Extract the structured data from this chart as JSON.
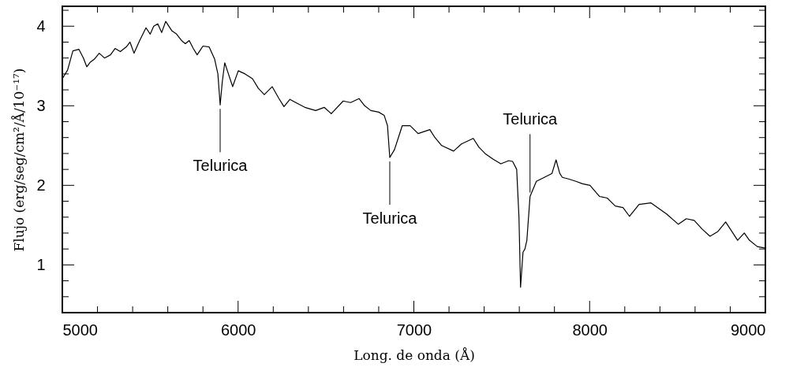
{
  "chart_data": {
    "type": "line",
    "xlabel": "Long. de onda (Å)",
    "ylabel": "Flujo (erg/seg/cm²/Å/10⁻¹⁷)",
    "xlim": [
      5000,
      9000
    ],
    "ylim": [
      0.4,
      4.25
    ],
    "xticks": [
      5000,
      {
        "value": 5200,
        "label": null
      },
      {
        "value": 5400,
        "label": null
      },
      {
        "value": 5600,
        "label": null
      },
      {
        "value": 5800,
        "label": null
      },
      6000,
      {
        "value": 6200,
        "label": null
      },
      {
        "value": 6400,
        "label": null
      },
      {
        "value": 6600,
        "label": null
      },
      {
        "value": 6800,
        "label": null
      },
      7000,
      {
        "value": 7200,
        "label": null
      },
      {
        "value": 7400,
        "label": null
      },
      {
        "value": 7600,
        "label": null
      },
      {
        "value": 7800,
        "label": null
      },
      8000,
      {
        "value": 8200,
        "label": null
      },
      {
        "value": 8400,
        "label": null
      },
      {
        "value": 8600,
        "label": null
      },
      {
        "value": 8800,
        "label": null
      },
      9000
    ],
    "yticks": [
      {
        "value": 0.6,
        "label": null
      },
      {
        "value": 0.8,
        "label": null
      },
      1,
      {
        "value": 1.2,
        "label": null
      },
      {
        "value": 1.4,
        "label": null
      },
      {
        "value": 1.6,
        "label": null
      },
      {
        "value": 1.8,
        "label": null
      },
      2,
      {
        "value": 2.2,
        "label": null
      },
      {
        "value": 2.4,
        "label": null
      },
      {
        "value": 2.6,
        "label": null
      },
      {
        "value": 2.8,
        "label": null
      },
      3,
      {
        "value": 3.2,
        "label": null
      },
      {
        "value": 3.4,
        "label": null
      },
      {
        "value": 3.6,
        "label": null
      },
      {
        "value": 3.8,
        "label": null
      },
      4,
      {
        "value": 4.2,
        "label": null
      }
    ],
    "marker": "none",
    "line_style": "solid",
    "series": [
      {
        "color": "#000000",
        "x": [
          5000,
          5030,
          5060,
          5094,
          5120,
          5139,
          5160,
          5184,
          5210,
          5240,
          5274,
          5300,
          5330,
          5364,
          5385,
          5408,
          5440,
          5476,
          5500,
          5520,
          5543,
          5565,
          5588,
          5624,
          5650,
          5678,
          5700,
          5722,
          5745,
          5767,
          5800,
          5835,
          5866,
          5885,
          5898,
          5910,
          5924,
          5945,
          5969,
          6001,
          6040,
          6082,
          6115,
          6149,
          6194,
          6230,
          6261,
          6295,
          6328,
          6380,
          6441,
          6490,
          6530,
          6598,
          6640,
          6688,
          6720,
          6755,
          6800,
          6831,
          6850,
          6863,
          6890,
          6934,
          6979,
          7024,
          7091,
          7120,
          7158,
          7226,
          7271,
          7338,
          7370,
          7405,
          7450,
          7495,
          7540,
          7562,
          7585,
          7598,
          7607,
          7621,
          7632,
          7643,
          7661,
          7697,
          7742,
          7786,
          7809,
          7830,
          7845,
          7880,
          7922,
          7960,
          8002,
          8056,
          8100,
          8146,
          8190,
          8227,
          8281,
          8348,
          8400,
          8438,
          8505,
          8550,
          8595,
          8640,
          8685,
          8730,
          8774,
          8842,
          8880,
          8909,
          8954,
          9000
        ],
        "values": [
          3.34,
          3.45,
          3.69,
          3.71,
          3.6,
          3.49,
          3.55,
          3.59,
          3.66,
          3.6,
          3.64,
          3.72,
          3.68,
          3.74,
          3.8,
          3.66,
          3.82,
          3.98,
          3.9,
          4.0,
          4.03,
          3.92,
          4.06,
          3.94,
          3.9,
          3.82,
          3.78,
          3.82,
          3.72,
          3.64,
          3.75,
          3.74,
          3.59,
          3.4,
          3.01,
          3.3,
          3.54,
          3.4,
          3.24,
          3.44,
          3.4,
          3.34,
          3.22,
          3.14,
          3.24,
          3.1,
          2.99,
          3.08,
          3.04,
          2.98,
          2.94,
          2.98,
          2.9,
          3.06,
          3.04,
          3.09,
          3.0,
          2.94,
          2.92,
          2.88,
          2.75,
          2.35,
          2.45,
          2.75,
          2.75,
          2.65,
          2.7,
          2.6,
          2.5,
          2.43,
          2.52,
          2.59,
          2.48,
          2.4,
          2.33,
          2.27,
          2.31,
          2.3,
          2.2,
          1.6,
          0.72,
          1.16,
          1.2,
          1.31,
          1.86,
          2.05,
          2.1,
          2.15,
          2.32,
          2.15,
          2.1,
          2.08,
          2.05,
          2.02,
          2.0,
          1.86,
          1.84,
          1.74,
          1.72,
          1.61,
          1.76,
          1.78,
          1.7,
          1.64,
          1.51,
          1.58,
          1.56,
          1.45,
          1.36,
          1.42,
          1.54,
          1.31,
          1.4,
          1.31,
          1.23,
          1.21
        ]
      }
    ],
    "annotations": [
      {
        "text": "Telurica",
        "x": 5898,
        "y": 3.01
      },
      {
        "text": "Telurica",
        "x": 6863,
        "y": 2.35
      },
      {
        "text": "Telurica",
        "x": 7661,
        "y": 1.86
      }
    ]
  }
}
